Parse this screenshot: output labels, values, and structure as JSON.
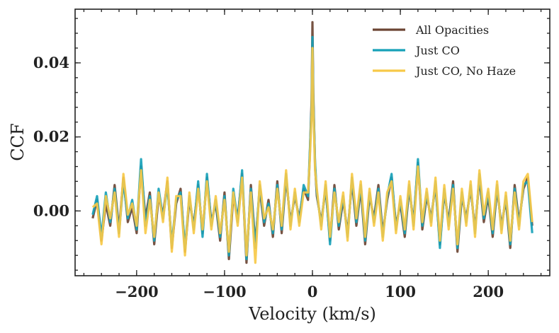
{
  "chart_data": {
    "type": "line",
    "title": "",
    "xlabel": "Velocity (km/s)",
    "ylabel": "CCF",
    "xlim": [
      -270,
      270
    ],
    "ylim": [
      -0.0175,
      0.0545
    ],
    "xticks": [
      -200,
      -100,
      0,
      100,
      200
    ],
    "xtick_labels": [
      "−200",
      "−100",
      "0",
      "100",
      "200"
    ],
    "yticks": [
      0.0,
      0.02,
      0.04
    ],
    "ytick_labels": [
      "0.00",
      "0.02",
      "0.04"
    ],
    "legend_position": "top-right",
    "x": [
      -250,
      -245,
      -240,
      -235,
      -230,
      -225,
      -220,
      -215,
      -210,
      -205,
      -200,
      -195,
      -190,
      -185,
      -180,
      -175,
      -170,
      -165,
      -160,
      -155,
      -150,
      -145,
      -140,
      -135,
      -130,
      -125,
      -120,
      -115,
      -110,
      -105,
      -100,
      -95,
      -90,
      -85,
      -80,
      -75,
      -70,
      -65,
      -60,
      -55,
      -50,
      -45,
      -40,
      -35,
      -30,
      -25,
      -20,
      -15,
      -10,
      -5,
      -3,
      -1,
      0,
      1,
      3,
      5,
      10,
      15,
      20,
      25,
      30,
      35,
      40,
      45,
      50,
      55,
      60,
      65,
      70,
      75,
      80,
      85,
      90,
      95,
      100,
      105,
      110,
      115,
      120,
      125,
      130,
      135,
      140,
      145,
      150,
      155,
      160,
      165,
      170,
      175,
      180,
      185,
      190,
      195,
      200,
      205,
      210,
      215,
      220,
      225,
      230,
      235,
      240,
      245,
      250
    ],
    "series": [
      {
        "name": "All Opacities",
        "color": "#6b4433",
        "values": [
          -0.002,
          0.003,
          -0.008,
          0.002,
          -0.004,
          0.007,
          -0.005,
          0.009,
          -0.003,
          0.001,
          -0.006,
          0.012,
          -0.002,
          0.005,
          -0.009,
          0.004,
          -0.001,
          0.008,
          -0.01,
          0.002,
          0.006,
          -0.011,
          0.003,
          -0.004,
          0.007,
          -0.006,
          0.009,
          -0.003,
          0.002,
          -0.008,
          0.005,
          -0.013,
          0.004,
          -0.002,
          0.01,
          -0.014,
          0.007,
          -0.009,
          0.006,
          -0.004,
          0.003,
          -0.007,
          0.008,
          -0.006,
          0.009,
          -0.003,
          0.004,
          -0.002,
          0.006,
          0.003,
          0.015,
          0.03,
          0.051,
          0.032,
          0.012,
          0.004,
          -0.003,
          0.006,
          -0.008,
          0.007,
          -0.005,
          0.003,
          -0.006,
          0.008,
          -0.004,
          0.006,
          -0.009,
          0.004,
          -0.002,
          0.007,
          -0.006,
          0.003,
          0.009,
          -0.004,
          0.002,
          -0.007,
          0.006,
          -0.003,
          0.013,
          -0.005,
          0.004,
          -0.002,
          0.007,
          -0.009,
          0.005,
          -0.003,
          0.008,
          -0.011,
          0.004,
          -0.002,
          0.006,
          -0.005,
          0.009,
          -0.003,
          0.004,
          -0.007,
          0.006,
          -0.004,
          0.003,
          -0.01,
          0.007,
          -0.003,
          0.006,
          0.009,
          -0.004
        ]
      },
      {
        "name": "Just CO",
        "color": "#17a1b8",
        "values": [
          -0.001,
          0.004,
          -0.007,
          0.005,
          -0.003,
          0.006,
          -0.006,
          0.008,
          -0.002,
          0.003,
          -0.005,
          0.014,
          -0.004,
          0.004,
          -0.008,
          0.006,
          -0.002,
          0.007,
          -0.009,
          0.003,
          0.005,
          -0.01,
          0.004,
          -0.005,
          0.008,
          -0.007,
          0.01,
          -0.004,
          0.003,
          -0.007,
          0.004,
          -0.012,
          0.006,
          -0.003,
          0.011,
          -0.013,
          0.006,
          -0.01,
          0.007,
          -0.003,
          0.002,
          -0.006,
          0.007,
          -0.005,
          0.01,
          -0.004,
          0.005,
          -0.003,
          0.007,
          0.004,
          0.016,
          0.028,
          0.047,
          0.03,
          0.013,
          0.005,
          -0.004,
          0.007,
          -0.009,
          0.006,
          -0.004,
          0.004,
          -0.007,
          0.009,
          -0.003,
          0.007,
          -0.008,
          0.005,
          -0.003,
          0.006,
          -0.007,
          0.004,
          0.01,
          -0.005,
          0.003,
          -0.006,
          0.007,
          -0.004,
          0.014,
          -0.004,
          0.005,
          -0.003,
          0.008,
          -0.01,
          0.006,
          -0.004,
          0.007,
          -0.01,
          0.005,
          -0.003,
          0.007,
          -0.006,
          0.01,
          -0.002,
          0.005,
          -0.006,
          0.007,
          -0.005,
          0.004,
          -0.009,
          0.006,
          -0.004,
          0.007,
          0.008,
          -0.006
        ]
      },
      {
        "name": "Just CO, No Haze",
        "color": "#f7c948",
        "values": [
          0.001,
          0.002,
          -0.009,
          0.004,
          -0.002,
          0.005,
          -0.007,
          0.01,
          -0.001,
          0.002,
          -0.004,
          0.011,
          -0.006,
          0.003,
          -0.007,
          0.005,
          -0.003,
          0.009,
          -0.011,
          0.004,
          0.004,
          -0.012,
          0.005,
          -0.006,
          0.006,
          -0.005,
          0.008,
          -0.005,
          0.004,
          -0.006,
          0.003,
          -0.011,
          0.005,
          -0.004,
          0.009,
          -0.012,
          0.005,
          -0.014,
          0.008,
          -0.002,
          0.001,
          -0.005,
          0.006,
          -0.004,
          0.011,
          -0.005,
          0.006,
          -0.004,
          0.005,
          0.005,
          0.014,
          0.026,
          0.044,
          0.028,
          0.011,
          0.006,
          -0.005,
          0.008,
          -0.007,
          0.005,
          -0.003,
          0.005,
          -0.008,
          0.01,
          -0.002,
          0.008,
          -0.007,
          0.006,
          -0.004,
          0.005,
          -0.008,
          0.005,
          0.008,
          -0.006,
          0.004,
          -0.005,
          0.008,
          -0.005,
          0.012,
          -0.003,
          0.006,
          -0.004,
          0.009,
          -0.008,
          0.007,
          -0.005,
          0.006,
          -0.009,
          0.006,
          -0.004,
          0.008,
          -0.007,
          0.011,
          -0.001,
          0.006,
          -0.005,
          0.008,
          -0.006,
          0.005,
          -0.008,
          0.005,
          -0.005,
          0.008,
          0.01,
          -0.003
        ]
      }
    ]
  }
}
